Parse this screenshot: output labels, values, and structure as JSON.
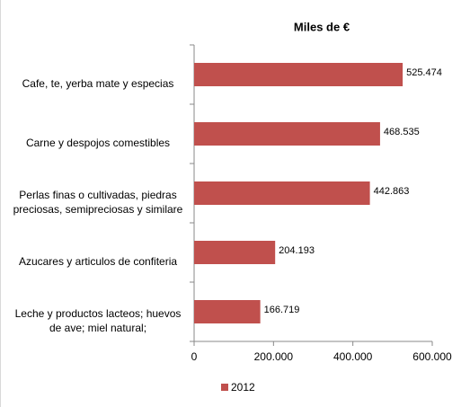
{
  "chart_data": {
    "type": "bar",
    "orientation": "horizontal",
    "title": "Miles de €",
    "categories": [
      "Cafe, te, yerba mate y especias",
      "Carne y despojos comestibles",
      "Perlas finas o cultivadas, piedras preciosas, semipreciosas y similare",
      "Azucares y articulos de confiteria",
      "Leche y productos lacteos; huevos de ave; miel natural;"
    ],
    "series": [
      {
        "name": "2012",
        "color": "#c0504d",
        "values": [
          525474,
          468535,
          442863,
          204193,
          166719
        ],
        "value_labels": [
          "525.474",
          "468.535",
          "442.863",
          "204.193",
          "166.719"
        ]
      }
    ],
    "xlim": [
      0,
      600000
    ],
    "xticks": [
      0,
      {
        "value": 200000,
        "label": "200.000"
      },
      {
        "value": 400000,
        "label": "400.000"
      },
      {
        "value": 600000,
        "label": "600.000"
      }
    ],
    "legend": "bottom"
  }
}
